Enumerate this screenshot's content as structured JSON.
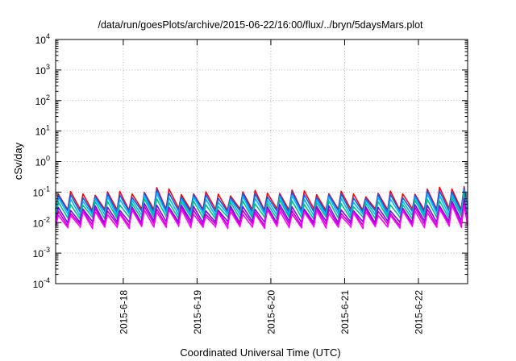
{
  "chart_data": {
    "type": "line",
    "title": "/data/run/goesPlots/archive/2015-06-22/16:00/flux/../bryn/5daysMars.plot",
    "xlabel": "Coordinated Universal Time (UTC)",
    "ylabel": "cSv/day",
    "yscale": "log",
    "ylim": [
      0.0001,
      10000
    ],
    "xlim": [
      "2015-06-17 02:00",
      "2015-06-22 16:00"
    ],
    "grid": true,
    "x_tick_labels": [
      "2015-6-18",
      "2015-6-19",
      "2015-6-20",
      "2015-6-21",
      "2015-6-22"
    ],
    "y_tick_labels": [
      {
        "base": "10",
        "exp": "-4"
      },
      {
        "base": "10",
        "exp": "-3"
      },
      {
        "base": "10",
        "exp": "-2"
      },
      {
        "base": "10",
        "exp": "-1"
      },
      {
        "base": "10",
        "exp": "0"
      },
      {
        "base": "10",
        "exp": "1"
      },
      {
        "base": "10",
        "exp": "2"
      },
      {
        "base": "10",
        "exp": "3"
      },
      {
        "base": "10",
        "exp": "4"
      }
    ],
    "pattern": {
      "spike_period_hours": 4,
      "x": [
        "2015-06-17 02:00",
        "2015-06-18 00:00",
        "2015-06-18 12:00",
        "2015-06-19 00:00",
        "2015-06-20 00:00",
        "2015-06-21 00:00",
        "2015-06-22 00:00",
        "2015-06-22 16:00"
      ],
      "envelope": [
        1.0,
        1.0,
        1.55,
        1.1,
        1.1,
        1.1,
        1.2,
        1.8
      ]
    },
    "series": [
      {
        "color": "#ff0000",
        "peak": 0.085,
        "base": 0.028
      },
      {
        "color": "#0060ff",
        "peak": 0.07,
        "base": 0.024
      },
      {
        "color": "#00b4ff",
        "peak": 0.055,
        "base": 0.019
      },
      {
        "color": "#00c080",
        "peak": 0.04,
        "base": 0.015
      },
      {
        "color": "#8000ff",
        "peak": 0.028,
        "base": 0.011
      },
      {
        "color": "#c000c0",
        "peak": 0.023,
        "base": 0.009
      },
      {
        "color": "#ff00ff",
        "peak": 0.019,
        "base": 0.0075
      }
    ]
  }
}
